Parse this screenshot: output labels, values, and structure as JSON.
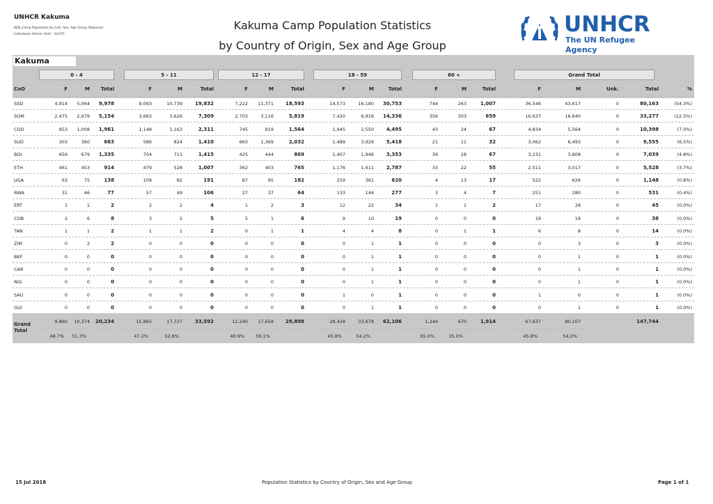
{
  "header": {
    "org": "UNHCR Kakuma",
    "subtitle": "KEN_Camp Population by CoO, Sex, Age Group (Kakuma)",
    "subtitle2": "Individuals Active: HeHi - ScCOT",
    "title_line1": "Kakuma Camp Population Statistics",
    "title_line2": "by Country of Origin, Sex and Age Group",
    "logo_text": "UNHCR",
    "logo_tagline": "The UN Refugee Agency",
    "logo_color": "#1f5faa"
  },
  "table": {
    "camp": "Kakuma",
    "groups": [
      "0 - 4",
      "5 - 11",
      "12 - 17",
      "18 - 59",
      "60 +",
      "Grand Total"
    ],
    "col_coo": "CoO",
    "col_f": "F",
    "col_m": "M",
    "col_total": "Total",
    "col_unk": "Unk.",
    "col_pct": "%",
    "rows": [
      {
        "coo": "SSD",
        "v": [
          "4,914",
          "5,064",
          "9,978",
          "9,093",
          "10,739",
          "19,832",
          "7,222",
          "11,371",
          "18,593",
          "14,573",
          "16,180",
          "30,753",
          "744",
          "263",
          "1,007",
          "36,546",
          "43,617",
          "0",
          "80,163",
          "(54.3%)"
        ]
      },
      {
        "coo": "SOM",
        "v": [
          "2,475",
          "2,679",
          "5,154",
          "3,683",
          "3,626",
          "7,309",
          "2,703",
          "3,116",
          "5,819",
          "7,420",
          "6,916",
          "14,336",
          "356",
          "303",
          "659",
          "16,637",
          "16,640",
          "0",
          "33,277",
          "(22.5%)"
        ]
      },
      {
        "coo": "COD",
        "v": [
          "953",
          "1,008",
          "1,961",
          "1,148",
          "1,163",
          "2,311",
          "745",
          "819",
          "1,564",
          "1,945",
          "2,550",
          "4,495",
          "43",
          "24",
          "67",
          "4,834",
          "5,564",
          "0",
          "10,398",
          "(7.0%)"
        ]
      },
      {
        "coo": "SUD",
        "v": [
          "303",
          "360",
          "663",
          "586",
          "824",
          "1,410",
          "663",
          "1,369",
          "2,032",
          "1,489",
          "3,929",
          "5,418",
          "21",
          "11",
          "32",
          "3,062",
          "6,493",
          "0",
          "9,555",
          "(6.5%)"
        ]
      },
      {
        "coo": "BDI",
        "v": [
          "656",
          "679",
          "1,335",
          "704",
          "711",
          "1,415",
          "425",
          "444",
          "869",
          "1,407",
          "1,946",
          "3,353",
          "39",
          "28",
          "67",
          "3,231",
          "3,808",
          "0",
          "7,039",
          "(4.8%)"
        ]
      },
      {
        "coo": "ETH",
        "v": [
          "461",
          "453",
          "914",
          "479",
          "528",
          "1,007",
          "362",
          "403",
          "765",
          "1,176",
          "1,611",
          "2,787",
          "33",
          "22",
          "55",
          "2,511",
          "3,017",
          "0",
          "5,528",
          "(3.7%)"
        ]
      },
      {
        "coo": "UGA",
        "v": [
          "63",
          "75",
          "138",
          "109",
          "82",
          "191",
          "87",
          "95",
          "182",
          "259",
          "361",
          "620",
          "4",
          "13",
          "17",
          "522",
          "626",
          "0",
          "1,148",
          "(0.8%)"
        ]
      },
      {
        "coo": "RWA",
        "v": [
          "31",
          "46",
          "77",
          "57",
          "49",
          "106",
          "27",
          "37",
          "64",
          "133",
          "144",
          "277",
          "3",
          "4",
          "7",
          "251",
          "280",
          "0",
          "531",
          "(0.4%)"
        ]
      },
      {
        "coo": "ERT",
        "v": [
          "1",
          "1",
          "2",
          "2",
          "2",
          "4",
          "1",
          "2",
          "3",
          "12",
          "22",
          "34",
          "1",
          "1",
          "2",
          "17",
          "28",
          "0",
          "45",
          "(0.0%)"
        ]
      },
      {
        "coo": "COB",
        "v": [
          "2",
          "6",
          "8",
          "3",
          "2",
          "5",
          "5",
          "1",
          "6",
          "9",
          "10",
          "19",
          "0",
          "0",
          "0",
          "19",
          "19",
          "0",
          "38",
          "(0.0%)"
        ]
      },
      {
        "coo": "TAN",
        "v": [
          "1",
          "1",
          "2",
          "1",
          "1",
          "2",
          "0",
          "1",
          "1",
          "4",
          "4",
          "8",
          "0",
          "1",
          "1",
          "6",
          "8",
          "0",
          "14",
          "(0.0%)"
        ]
      },
      {
        "coo": "ZIM",
        "v": [
          "0",
          "2",
          "2",
          "0",
          "0",
          "0",
          "0",
          "0",
          "0",
          "0",
          "1",
          "1",
          "0",
          "0",
          "0",
          "0",
          "3",
          "0",
          "3",
          "(0.0%)"
        ]
      },
      {
        "coo": "BKF",
        "v": [
          "0",
          "0",
          "0",
          "0",
          "0",
          "0",
          "0",
          "0",
          "0",
          "0",
          "1",
          "1",
          "0",
          "0",
          "0",
          "0",
          "1",
          "0",
          "1",
          "(0.0%)"
        ]
      },
      {
        "coo": "CAR",
        "v": [
          "0",
          "0",
          "0",
          "0",
          "0",
          "0",
          "0",
          "0",
          "0",
          "0",
          "1",
          "1",
          "0",
          "0",
          "0",
          "0",
          "1",
          "0",
          "1",
          "(0.0%)"
        ]
      },
      {
        "coo": "NIG",
        "v": [
          "0",
          "0",
          "0",
          "0",
          "0",
          "0",
          "0",
          "0",
          "0",
          "0",
          "1",
          "1",
          "0",
          "0",
          "0",
          "0",
          "1",
          "0",
          "1",
          "(0.0%)"
        ]
      },
      {
        "coo": "SAU",
        "v": [
          "0",
          "0",
          "0",
          "0",
          "0",
          "0",
          "0",
          "0",
          "0",
          "1",
          "0",
          "1",
          "0",
          "0",
          "0",
          "1",
          "0",
          "0",
          "1",
          "(0.0%)"
        ]
      },
      {
        "coo": "GUI",
        "v": [
          "0",
          "0",
          "0",
          "0",
          "0",
          "0",
          "0",
          "0",
          "0",
          "0",
          "1",
          "1",
          "0",
          "0",
          "0",
          "0",
          "1",
          "0",
          "1",
          "(0.0%)"
        ]
      }
    ],
    "grand_label_1": "Grand",
    "grand_label_2": "Total",
    "grand_values": [
      "9,860",
      "10,374",
      "20,234",
      "15,865",
      "17,727",
      "33,592",
      "12,240",
      "17,658",
      "29,898",
      "28,428",
      "33,678",
      "62,106",
      "1,244",
      "670",
      "1,914",
      "67,637",
      "80,107",
      "",
      "147,744",
      ""
    ],
    "grand_pcts": [
      "48.7%",
      "51.3%",
      "",
      "47.2%",
      "52.8%",
      "",
      "40.9%",
      "59.1%",
      "",
      "45.8%",
      "54.2%",
      "",
      "65.0%",
      "35.0%",
      "",
      "45.8%",
      "54.2%",
      "",
      "",
      ""
    ]
  },
  "footer": {
    "date": "15 Jul 2018",
    "center": "Population Statistics by Country of Origin, Sex and Age Group",
    "page": "Page 1 of 1"
  }
}
